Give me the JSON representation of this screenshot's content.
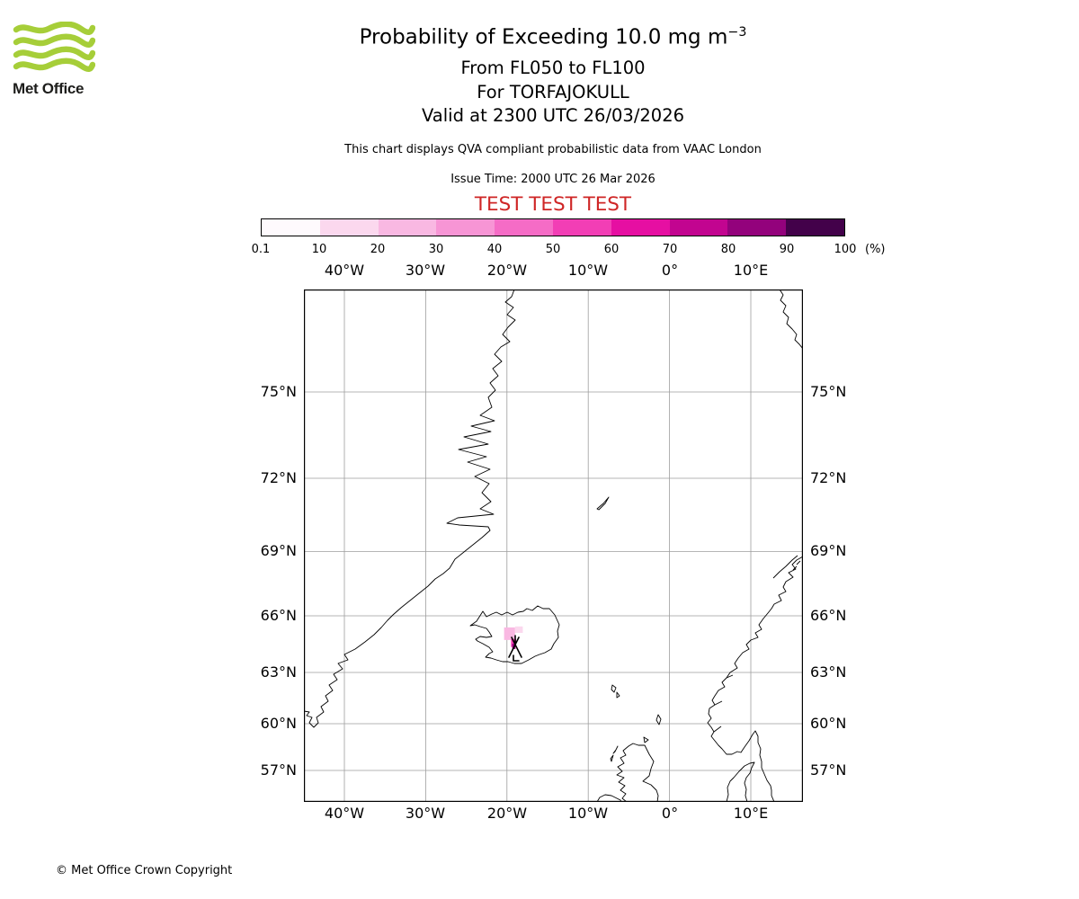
{
  "header": {
    "logo_text": "Met Office",
    "title_main": "Probability of Exceeding 10.0 mg m",
    "title_sup": "−3",
    "subtitle_levels": "From FL050 to FL100",
    "subtitle_volcano": "For TORFAJOKULL",
    "subtitle_valid": "Valid at 2300 UTC 26/03/2026",
    "description": "This chart displays QVA compliant probabilistic data from VAAC London",
    "issue_time": "Issue Time: 2000 UTC 26 Mar 2026",
    "test_banner": "TEST TEST TEST"
  },
  "colors": {
    "test_text": "#cf2626",
    "logo_green": "#a6ce39",
    "grid_gray": "#9e9e9e",
    "coastline": "#000000"
  },
  "colorbar": {
    "unit": "(%)",
    "tick_labels": [
      "0.1",
      "10",
      "20",
      "30",
      "40",
      "50",
      "60",
      "70",
      "80",
      "90",
      "100"
    ],
    "segment_colors": [
      "#fefafd",
      "#fbd8ee",
      "#f9b8e2",
      "#f795d5",
      "#f56cc6",
      "#f23eb5",
      "#e60fa2",
      "#c20590",
      "#93027c",
      "#43014a"
    ]
  },
  "map": {
    "top_labels": [
      "40°W",
      "30°W",
      "20°W",
      "10°W",
      "0°",
      "10°E"
    ],
    "bottom_labels": [
      "40°W",
      "30°W",
      "20°W",
      "10°W",
      "0°",
      "10°E"
    ],
    "left_labels": [
      "75°N",
      "72°N",
      "69°N",
      "66°N",
      "63°N",
      "60°N",
      "57°N"
    ],
    "right_labels": [
      "75°N",
      "72°N",
      "69°N",
      "66°N",
      "63°N",
      "60°N",
      "57°N"
    ]
  },
  "footer": {
    "copyright": "© Met Office Crown Copyright"
  },
  "chart_data": {
    "type": "heatmap",
    "title": "Probability of Exceeding 10.0 mg m^-3",
    "threshold": "10.0 mg m^-3",
    "flight_levels": "FL050 to FL100",
    "volcano": {
      "name": "TORFAJOKULL",
      "lon_deg": -19.0,
      "lat_deg": 63.95
    },
    "valid_time": "2300 UTC 26/03/2026",
    "issue_time": "2000 UTC 26 Mar 2026",
    "source": "VAAC London",
    "units": "%",
    "scale_bounds_percent": [
      0.1,
      10,
      20,
      30,
      40,
      50,
      60,
      70,
      80,
      90,
      100
    ],
    "map_projection": "mercator",
    "map_extent": {
      "lon_min_deg": -45.0,
      "lon_max_deg": 16.4,
      "lat_min_deg": 54.9,
      "lat_max_deg": 77.9
    },
    "grid_lon_deg": [
      -40,
      -30,
      -20,
      -10,
      0,
      10
    ],
    "grid_lat_deg": [
      57,
      60,
      63,
      66,
      69,
      72,
      75
    ],
    "plume_cells": [
      {
        "lon_deg": -20.35,
        "lat_deg": 65.4,
        "dlon_deg": 1.35,
        "dlat_deg": 0.65,
        "percent": 25
      },
      {
        "lon_deg": -19.0,
        "lat_deg": 65.45,
        "dlon_deg": 0.95,
        "dlat_deg": 0.33,
        "percent": 12
      },
      {
        "lon_deg": -19.5,
        "lat_deg": 64.8,
        "dlon_deg": 0.62,
        "dlat_deg": 0.42,
        "percent": 55
      },
      {
        "lon_deg": -19.35,
        "lat_deg": 64.55,
        "dlon_deg": 0.4,
        "dlat_deg": 0.28,
        "percent": 85
      }
    ]
  }
}
